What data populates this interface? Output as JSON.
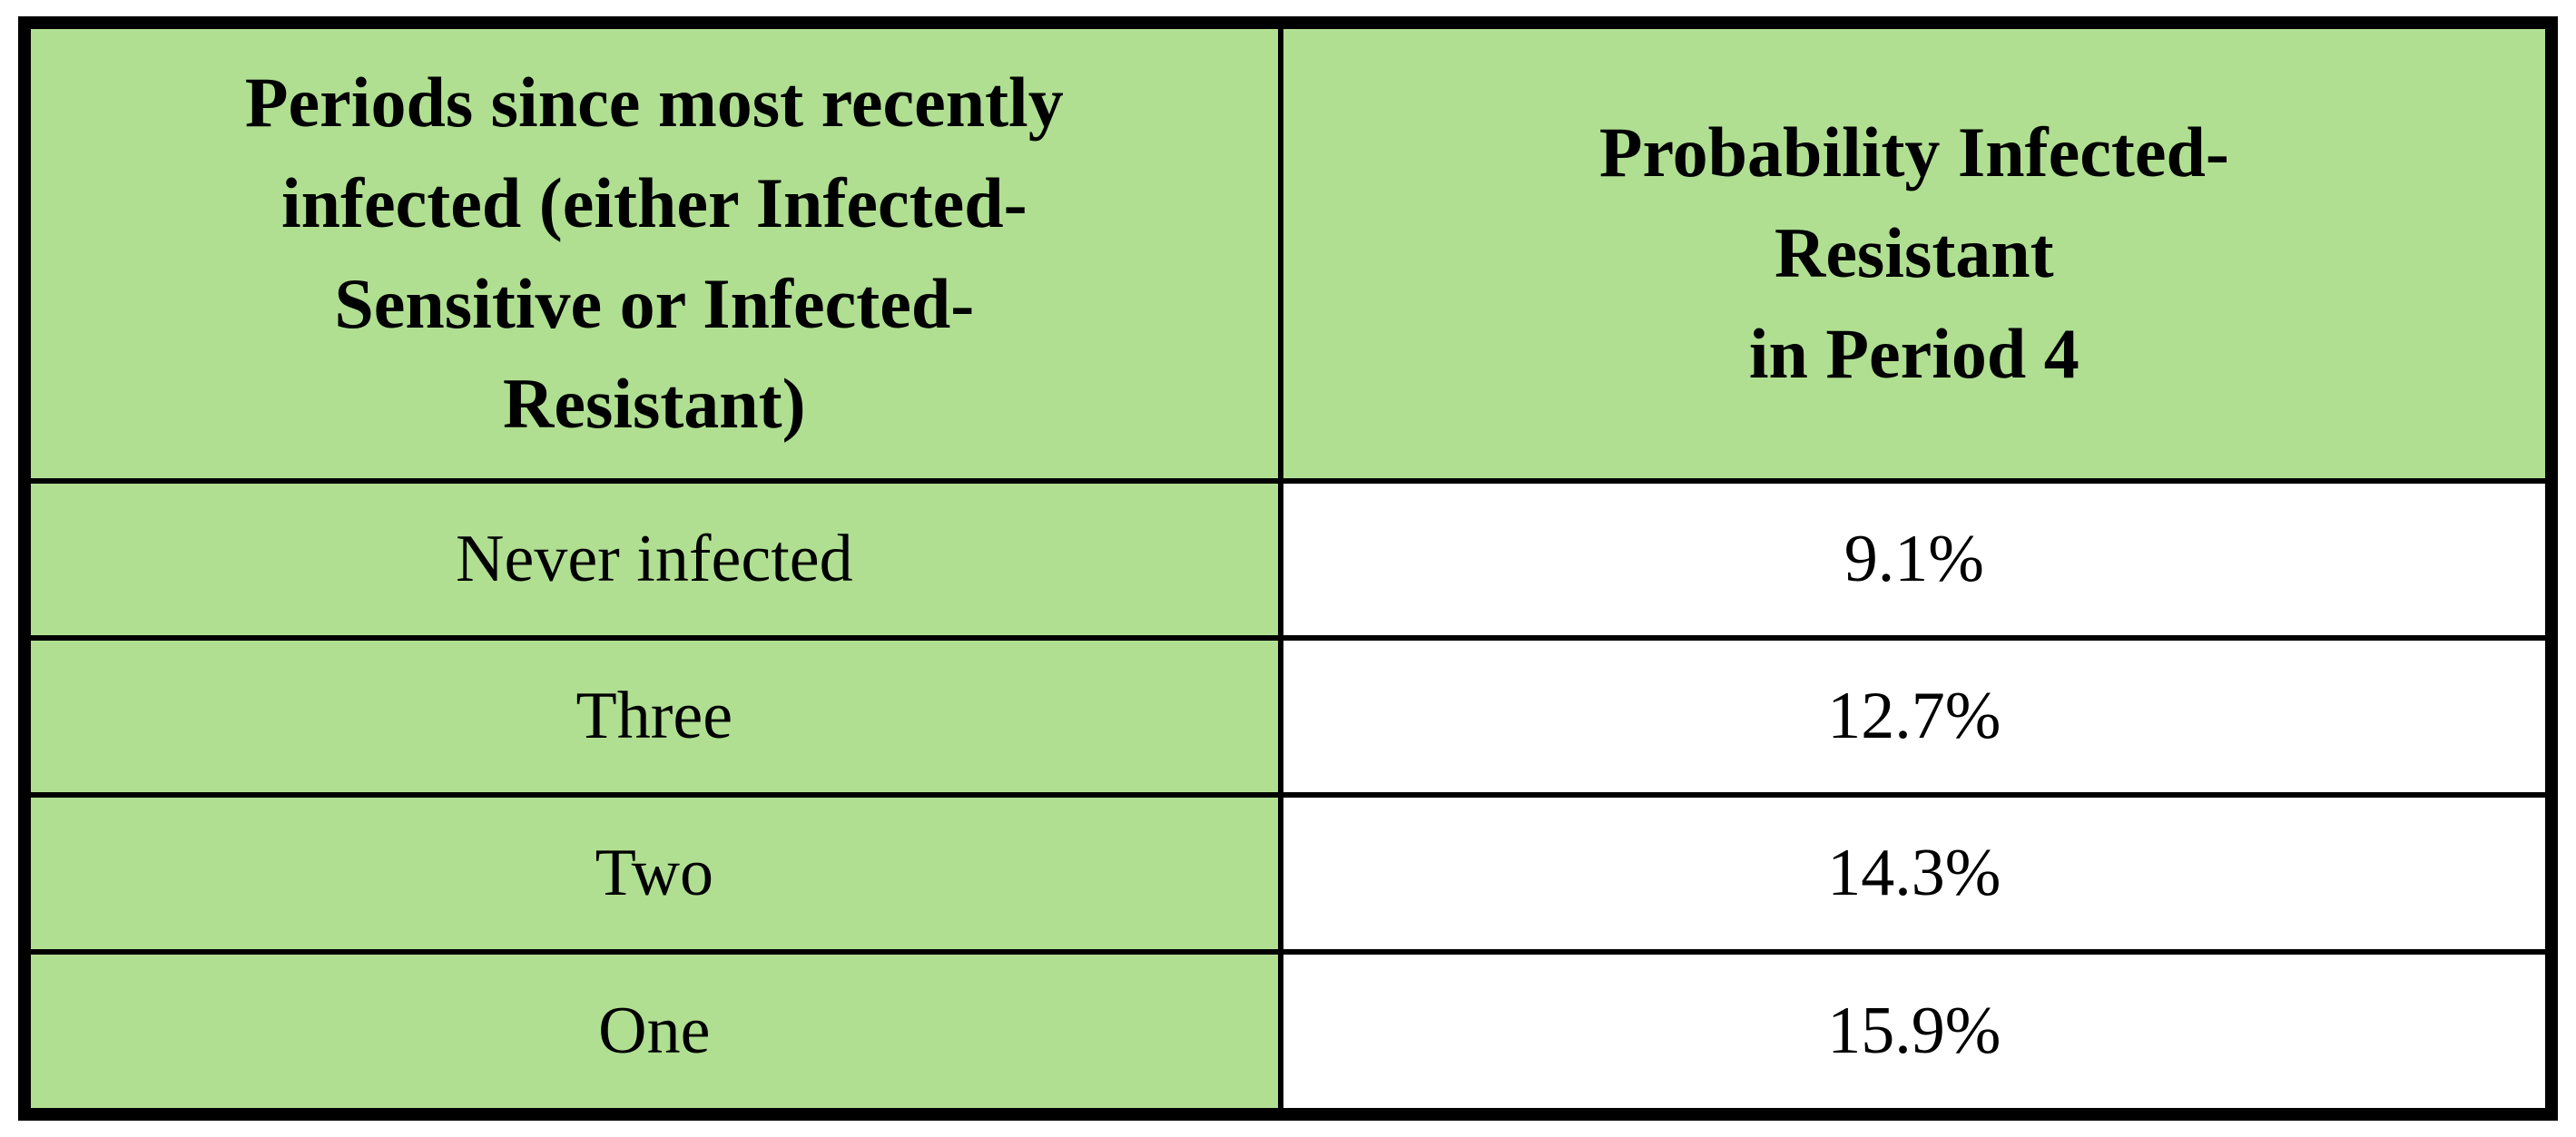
{
  "colors": {
    "header_background": "#b0df92",
    "label_column_background": "#b0df92",
    "value_column_background": "#ffffff",
    "border": "#000000",
    "text": "#000000"
  },
  "chart_data": {
    "type": "table",
    "title": "",
    "columns": [
      "Periods since most recently infected (either Infected-Sensitive or Infected-Resistant)",
      "Probability Infected-Resistant in Period 4"
    ],
    "rows": [
      [
        "Never infected",
        "9.1%"
      ],
      [
        "Three",
        "12.7%"
      ],
      [
        "Two",
        "14.3%"
      ],
      [
        "One",
        "15.9%"
      ]
    ]
  },
  "table": {
    "header_periods": "Periods since most recently\ninfected (either Infected-\nSensitive or Infected-\nResistant)",
    "header_probability": "Probability Infected-\nResistant\nin Period 4",
    "rows": [
      {
        "label": "Never infected",
        "value": "9.1%"
      },
      {
        "label": "Three",
        "value": "12.7%"
      },
      {
        "label": "Two",
        "value": "14.3%"
      },
      {
        "label": "One",
        "value": "15.9%"
      }
    ]
  }
}
